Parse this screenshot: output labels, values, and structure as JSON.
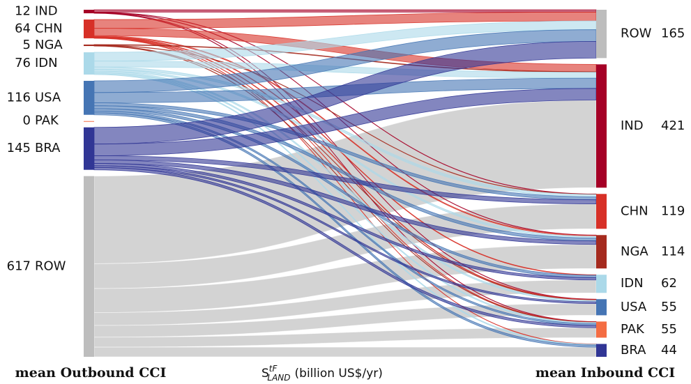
{
  "chart_data": {
    "type": "sankey",
    "source_nodes": [
      {
        "name": "IND",
        "value": 12,
        "color": "#a50026"
      },
      {
        "name": "CHN",
        "value": 64,
        "color": "#d73027"
      },
      {
        "name": "NGA",
        "value": 5,
        "color": "#a52a1e"
      },
      {
        "name": "IDN",
        "value": 76,
        "color": "#abd9e9"
      },
      {
        "name": "USA",
        "value": 116,
        "color": "#4575b4"
      },
      {
        "name": "PAK",
        "value": 0,
        "color": "#f46d43"
      },
      {
        "name": "BRA",
        "value": 145,
        "color": "#313695"
      },
      {
        "name": "ROW",
        "value": 617,
        "color": "#bdbdbd"
      }
    ],
    "target_nodes": [
      {
        "name": "ROW",
        "value": 165,
        "color": "#bdbdbd"
      },
      {
        "name": "IND",
        "value": 421,
        "color": "#a50026"
      },
      {
        "name": "CHN",
        "value": 119,
        "color": "#d73027"
      },
      {
        "name": "NGA",
        "value": 114,
        "color": "#a52a1e"
      },
      {
        "name": "IDN",
        "value": 62,
        "color": "#abd9e9"
      },
      {
        "name": "USA",
        "value": 55,
        "color": "#4575b4"
      },
      {
        "name": "PAK",
        "value": 55,
        "color": "#f46d43"
      },
      {
        "name": "BRA",
        "value": 44,
        "color": "#313695"
      }
    ],
    "links": [
      {
        "source": "IND",
        "target": "ROW",
        "value": 8
      },
      {
        "source": "IND",
        "target": "CHN",
        "value": 1
      },
      {
        "source": "IND",
        "target": "NGA",
        "value": 1
      },
      {
        "source": "IND",
        "target": "USA",
        "value": 1
      },
      {
        "source": "IND",
        "target": "PAK",
        "value": 1
      },
      {
        "source": "CHN",
        "target": "ROW",
        "value": 30
      },
      {
        "source": "CHN",
        "target": "IND",
        "value": 25
      },
      {
        "source": "CHN",
        "target": "NGA",
        "value": 3
      },
      {
        "source": "CHN",
        "target": "IDN",
        "value": 2
      },
      {
        "source": "CHN",
        "target": "USA",
        "value": 2
      },
      {
        "source": "CHN",
        "target": "PAK",
        "value": 1
      },
      {
        "source": "CHN",
        "target": "BRA",
        "value": 1
      },
      {
        "source": "NGA",
        "target": "IND",
        "value": 2
      },
      {
        "source": "NGA",
        "target": "CHN",
        "value": 1
      },
      {
        "source": "NGA",
        "target": "USA",
        "value": 1
      },
      {
        "source": "NGA",
        "target": "PAK",
        "value": 1
      },
      {
        "source": "IDN",
        "target": "ROW",
        "value": 30
      },
      {
        "source": "IDN",
        "target": "IND",
        "value": 20
      },
      {
        "source": "IDN",
        "target": "CHN",
        "value": 8
      },
      {
        "source": "IDN",
        "target": "NGA",
        "value": 6
      },
      {
        "source": "IDN",
        "target": "USA",
        "value": 5
      },
      {
        "source": "IDN",
        "target": "PAK",
        "value": 4
      },
      {
        "source": "IDN",
        "target": "BRA",
        "value": 3
      },
      {
        "source": "USA",
        "target": "ROW",
        "value": 40
      },
      {
        "source": "USA",
        "target": "IND",
        "value": 35
      },
      {
        "source": "USA",
        "target": "CHN",
        "value": 10
      },
      {
        "source": "USA",
        "target": "NGA",
        "value": 10
      },
      {
        "source": "USA",
        "target": "IDN",
        "value": 8
      },
      {
        "source": "USA",
        "target": "PAK",
        "value": 6
      },
      {
        "source": "USA",
        "target": "BRA",
        "value": 7
      },
      {
        "source": "BRA",
        "target": "ROW",
        "value": 57
      },
      {
        "source": "BRA",
        "target": "IND",
        "value": 40
      },
      {
        "source": "BRA",
        "target": "CHN",
        "value": 14
      },
      {
        "source": "BRA",
        "target": "NGA",
        "value": 12
      },
      {
        "source": "BRA",
        "target": "IDN",
        "value": 8
      },
      {
        "source": "BRA",
        "target": "USA",
        "value": 6
      },
      {
        "source": "BRA",
        "target": "PAK",
        "value": 8
      },
      {
        "source": "ROW",
        "target": "IND",
        "value": 299
      },
      {
        "source": "ROW",
        "target": "CHN",
        "value": 85
      },
      {
        "source": "ROW",
        "target": "NGA",
        "value": 82
      },
      {
        "source": "ROW",
        "target": "IDN",
        "value": 44
      },
      {
        "source": "ROW",
        "target": "USA",
        "value": 40
      },
      {
        "source": "ROW",
        "target": "PAK",
        "value": 34
      },
      {
        "source": "ROW",
        "target": "BRA",
        "value": 33
      }
    ],
    "left_title": "mean Outbound CCI",
    "right_title": "mean Inbound CCI",
    "axis_label": {
      "symbol": "S",
      "superscript": "tF",
      "subscript": "LAND",
      "unit": "(billion US$/yr)"
    }
  }
}
